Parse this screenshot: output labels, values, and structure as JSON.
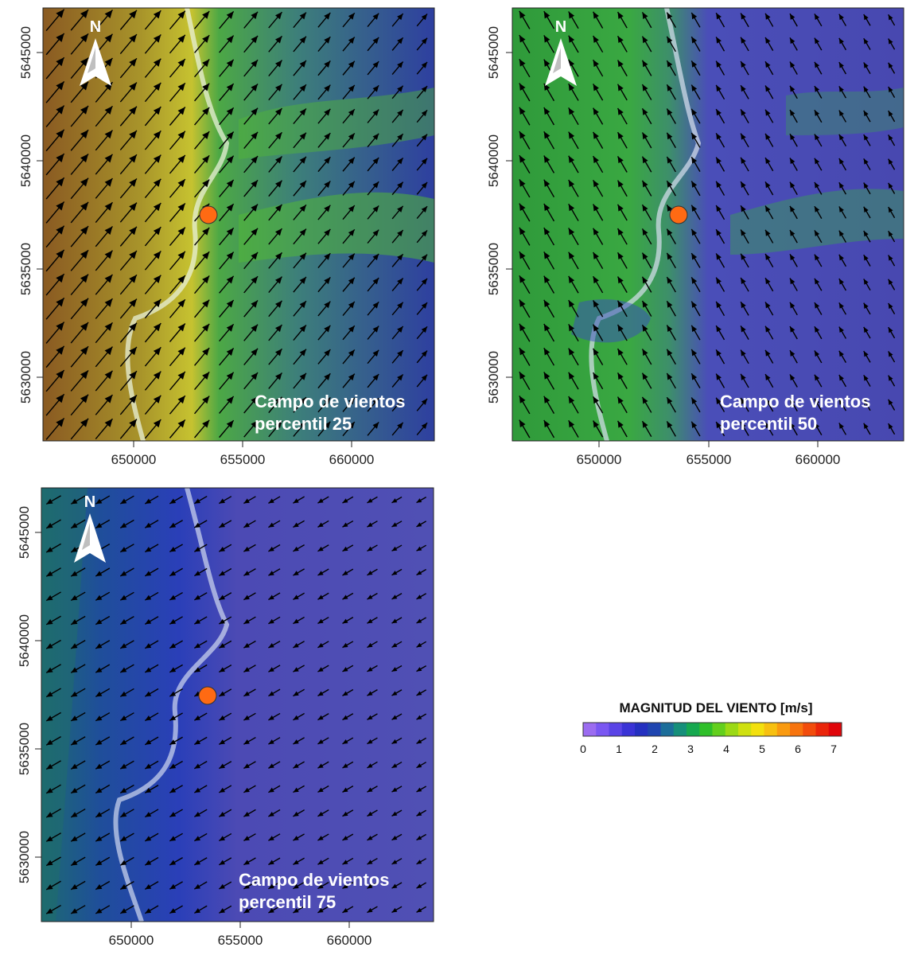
{
  "colors": {
    "site_marker": "#ff6a13",
    "arrow": "#000000",
    "scale": [
      "#9b6cf0",
      "#7a57f2",
      "#5a44e6",
      "#3a33d6",
      "#2430c0",
      "#1f45b0",
      "#1c6e9a",
      "#168f7a",
      "#16a84f",
      "#2fbf2a",
      "#63cf1d",
      "#9bd915",
      "#cfe010",
      "#f3e00e",
      "#f7c010",
      "#f99a10",
      "#f7740e",
      "#f24c0c",
      "#ea250a",
      "#e0050a"
    ]
  },
  "legend": {
    "title": "MAGNITUD DEL VIENTO [m/s]",
    "ticks": [
      "0",
      "1",
      "2",
      "3",
      "4",
      "5",
      "6",
      "7"
    ]
  },
  "panels": [
    {
      "id": "p25",
      "title_line1": "Campo de vientos",
      "title_line2": "percentil 25",
      "north_label": "N",
      "x_ticks": [
        "650000",
        "655000",
        "660000"
      ],
      "y_ticks": [
        "5645000",
        "5640000",
        "5635000",
        "5630000"
      ],
      "arrow_direction": "southwest-wind-toward-northeast",
      "west_magnitude_ms": 4.5,
      "east_magnitude_ms": 2.0
    },
    {
      "id": "p50",
      "title_line1": "Campo de vientos",
      "title_line2": "percentil 50",
      "north_label": "N",
      "x_ticks": [
        "650000",
        "655000",
        "660000"
      ],
      "y_ticks": [
        "5645000",
        "5640000",
        "5635000",
        "5630000"
      ],
      "arrow_direction": "southeast-wind-toward-northwest",
      "west_magnitude_ms": 3.0,
      "east_magnitude_ms": 1.3
    },
    {
      "id": "p75",
      "title_line1": "Campo de vientos",
      "title_line2": "percentil 75",
      "north_label": "N",
      "x_ticks": [
        "650000",
        "655000",
        "660000"
      ],
      "y_ticks": [
        "5645000",
        "5640000",
        "5635000",
        "5630000"
      ],
      "arrow_direction": "northeast-wind-toward-southwest",
      "west_magnitude_ms": 2.2,
      "east_magnitude_ms": 1.0
    }
  ]
}
